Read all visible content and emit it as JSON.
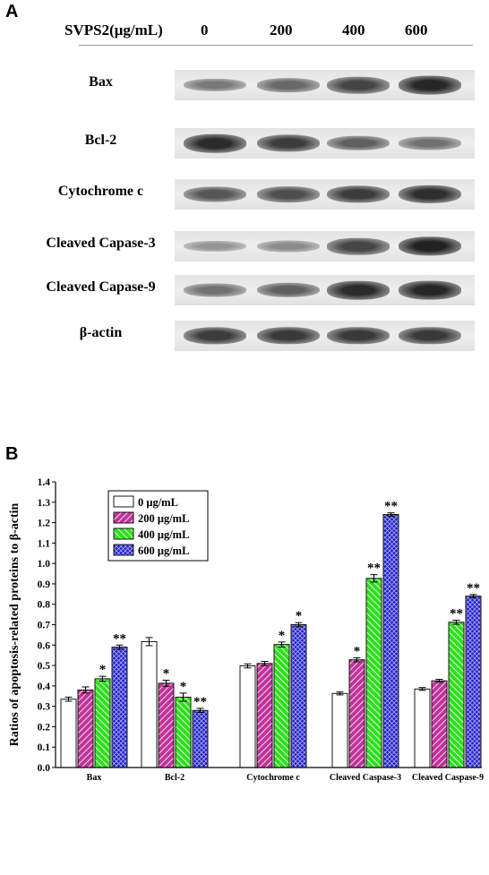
{
  "panel_a": {
    "letter": "A",
    "header_label": "SVPS2(μg/mL)",
    "concentrations": [
      "0",
      "200",
      "400",
      "600"
    ],
    "blots": [
      {
        "label": "Bax",
        "intensity": [
          0.45,
          0.55,
          0.75,
          0.92
        ]
      },
      {
        "label": "Bcl-2",
        "intensity": [
          0.9,
          0.8,
          0.6,
          0.5
        ]
      },
      {
        "label": "Cytochrome c",
        "intensity": [
          0.65,
          0.7,
          0.8,
          0.88
        ]
      },
      {
        "label": "Cleaved Capase-3",
        "intensity": [
          0.3,
          0.35,
          0.75,
          0.95
        ]
      },
      {
        "label": "Cleaved Capase-9",
        "intensity": [
          0.5,
          0.6,
          0.9,
          0.92
        ]
      },
      {
        "label": "β-actin",
        "intensity": [
          0.8,
          0.82,
          0.82,
          0.82
        ]
      }
    ]
  },
  "panel_b": {
    "letter": "B"
  },
  "colors": {
    "s0": "#ffffff",
    "s200": "#c0349a",
    "s400": "#33dd22",
    "s600": "#2222cc"
  },
  "chart_data": {
    "type": "bar",
    "categories": [
      "Bax",
      "Bcl-2",
      "Cytochrome c",
      "Cleaved Caspase-3",
      "Cleaved Caspase-9"
    ],
    "ylabel": "Ratios of apoptosis-related proteins to β-actin",
    "xlabel": "",
    "ylim": [
      0.0,
      1.4
    ],
    "yticks": [
      "0.0",
      "0.1",
      "0.2",
      "0.3",
      "0.4",
      "0.5",
      "0.6",
      "0.7",
      "0.8",
      "0.9",
      "1.0",
      "1.1",
      "1.2",
      "1.3",
      "1.4"
    ],
    "legend_position": "top-left",
    "series": [
      {
        "name": "0 μg/mL",
        "color": "#ffffff",
        "values": [
          0.335,
          0.617,
          0.498,
          0.363,
          0.385
        ],
        "errors": [
          0.01,
          0.02,
          0.01,
          0.007,
          0.007
        ],
        "sig": [
          "",
          "",
          "",
          "",
          ""
        ]
      },
      {
        "name": "200 μg/mL",
        "color": "#c0349a",
        "values": [
          0.38,
          0.413,
          0.51,
          0.528,
          0.425
        ],
        "errors": [
          0.015,
          0.015,
          0.01,
          0.01,
          0.007
        ],
        "sig": [
          "",
          "*",
          "",
          "*",
          ""
        ]
      },
      {
        "name": "400 μg/mL",
        "color": "#33dd22",
        "values": [
          0.435,
          0.345,
          0.603,
          0.927,
          0.712
        ],
        "errors": [
          0.012,
          0.02,
          0.012,
          0.018,
          0.01
        ],
        "sig": [
          "*",
          "*",
          "*",
          "**",
          "**"
        ]
      },
      {
        "name": "600 μg/mL",
        "color": "#2222cc",
        "values": [
          0.59,
          0.28,
          0.7,
          1.24,
          0.84
        ],
        "errors": [
          0.01,
          0.01,
          0.01,
          0.008,
          0.008
        ],
        "sig": [
          "**",
          "**",
          "*",
          "**",
          "**"
        ]
      }
    ]
  }
}
